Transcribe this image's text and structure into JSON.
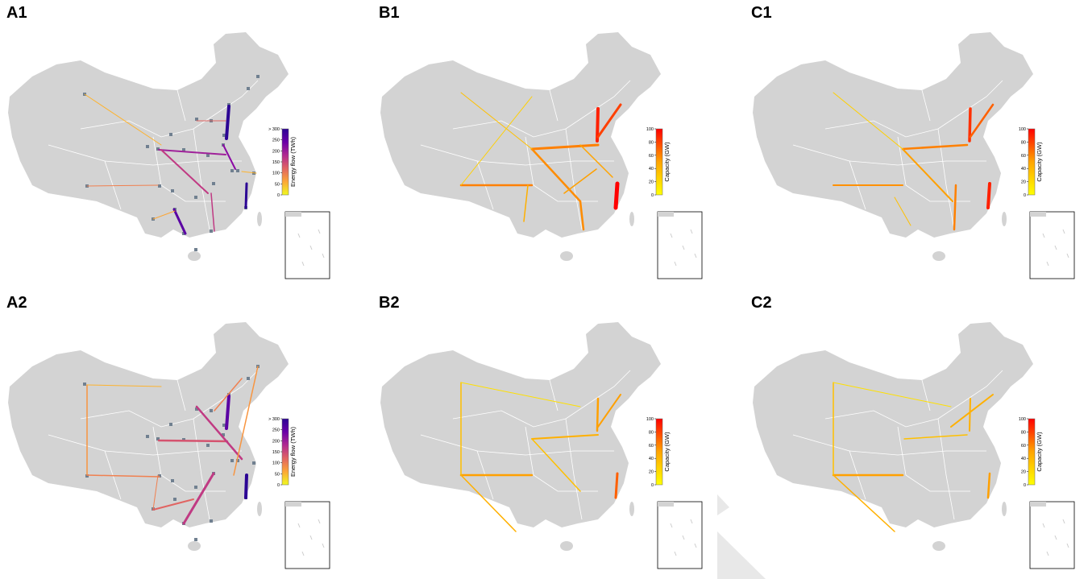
{
  "panels": [
    {
      "label": "A1",
      "type": "flow"
    },
    {
      "label": "B1",
      "type": "capacity"
    },
    {
      "label": "C1",
      "type": "capacity"
    },
    {
      "label": "A2",
      "type": "flow"
    },
    {
      "label": "B2",
      "type": "capacity"
    },
    {
      "label": "C2",
      "type": "capacity"
    }
  ],
  "colorbars": {
    "flow": {
      "title": "Energy flow (TWh)",
      "ticks": [
        "0",
        "50",
        "100",
        "150",
        "200",
        "250",
        "> 300"
      ],
      "colors": [
        "#f0f921",
        "#fca636",
        "#e16462",
        "#b12a90",
        "#6a00a8",
        "#2c0594"
      ]
    },
    "capacity": {
      "title": "Capacity (GW)",
      "ticks": [
        "0",
        "20",
        "40",
        "60",
        "80",
        "100"
      ],
      "colors": [
        "#ffff00",
        "#ffa500",
        "#ff0000"
      ]
    }
  },
  "map_colors": {
    "land": "#d3d3d3",
    "border": "#ffffff",
    "node": "#708090"
  }
}
